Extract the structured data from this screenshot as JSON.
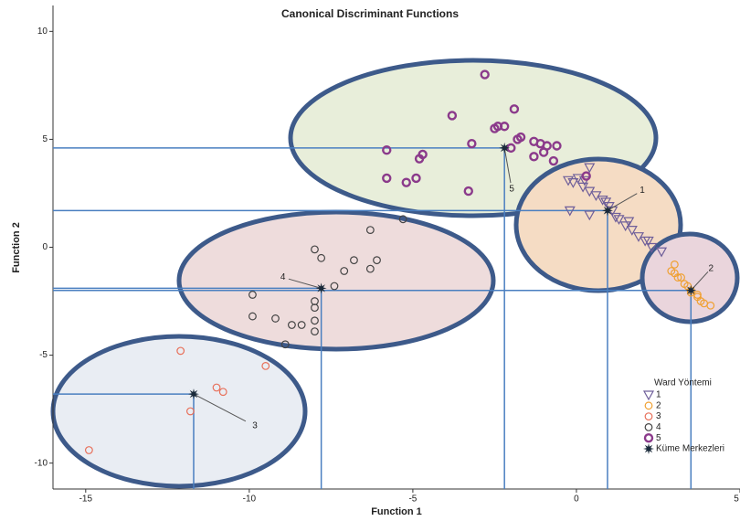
{
  "chart_data": {
    "type": "scatter",
    "title": "Canonical Discriminant Functions",
    "xlabel": "Function 1",
    "ylabel": "Function 2",
    "xlim": [
      -16,
      5
    ],
    "ylim": [
      -11.2,
      11.2
    ],
    "xticks": [
      -15,
      -10,
      -5,
      0,
      5
    ],
    "yticks": [
      -10,
      -5,
      0,
      5,
      10
    ],
    "legend": {
      "title": "Ward Yöntemi",
      "position": "right"
    },
    "series": [
      {
        "name": "1",
        "color": "#6f5f9a",
        "marker": "triangle",
        "x": [
          -0.25,
          -0.1,
          0.05,
          0.25,
          0.4,
          0.2,
          0.4,
          0.6,
          0.8,
          0.9,
          1.0,
          1.1,
          1.2,
          1.3,
          1.6,
          1.5,
          1.7,
          1.9,
          2.1,
          2.2,
          2.3,
          2.6,
          -0.2,
          0.4
        ],
        "values": [
          3.1,
          3.0,
          3.2,
          3.1,
          3.7,
          2.8,
          2.6,
          2.4,
          2.2,
          2.1,
          1.9,
          1.7,
          1.4,
          1.3,
          1.2,
          1.0,
          0.8,
          0.5,
          0.3,
          0.3,
          0.0,
          -0.2,
          1.7,
          1.5
        ]
      },
      {
        "name": "2",
        "color": "#f0a030",
        "marker": "circle",
        "x": [
          2.9,
          3.0,
          3.1,
          3.2,
          3.3,
          3.4,
          3.5,
          3.5,
          3.7,
          3.7,
          3.8,
          3.9,
          4.1,
          3.0
        ],
        "values": [
          -1.1,
          -1.2,
          -1.4,
          -1.4,
          -1.7,
          -1.8,
          -2.0,
          -2.1,
          -2.2,
          -2.3,
          -2.5,
          -2.6,
          -2.7,
          -0.8
        ]
      },
      {
        "name": "3",
        "color": "#e8705a",
        "marker": "circle",
        "x": [
          -12.1,
          -9.5,
          -11.0,
          -10.8,
          -11.8,
          -14.9
        ],
        "values": [
          -4.8,
          -5.5,
          -6.5,
          -6.7,
          -7.6,
          -9.4
        ]
      },
      {
        "name": "4",
        "color": "#444444",
        "marker": "circle",
        "x": [
          -6.3,
          -5.3,
          -8.0,
          -7.8,
          -6.8,
          -7.1,
          -6.1,
          -6.3,
          -7.4,
          -9.9,
          -8.0,
          -8.0,
          -9.9,
          -9.2,
          -8.7,
          -8.4,
          -8.0,
          -8.0,
          -8.9
        ],
        "values": [
          0.8,
          1.3,
          -0.1,
          -0.5,
          -0.6,
          -1.1,
          -0.6,
          -1.0,
          -1.8,
          -2.2,
          -2.5,
          -2.8,
          -3.2,
          -3.3,
          -3.6,
          -3.6,
          -3.4,
          -3.9,
          -4.5
        ]
      },
      {
        "name": "5",
        "color": "#8b3a8b",
        "marker": "thick-circle",
        "x": [
          -2.8,
          -3.8,
          -1.9,
          -2.2,
          -2.4,
          -2.5,
          -3.2,
          -5.8,
          -4.7,
          -4.8,
          -1.8,
          -1.7,
          -1.3,
          -1.1,
          -0.9,
          -0.6,
          -1.0,
          -0.7,
          -1.3,
          -5.8,
          -5.2,
          -4.9,
          -3.3,
          -2.0,
          0.3
        ],
        "values": [
          8.0,
          6.1,
          6.4,
          5.6,
          5.6,
          5.5,
          4.8,
          4.5,
          4.3,
          4.1,
          5.0,
          5.1,
          4.9,
          4.8,
          4.7,
          4.7,
          4.4,
          4.0,
          4.2,
          3.2,
          3.0,
          3.2,
          2.6,
          4.6,
          3.3
        ]
      },
      {
        "name": "Küme Merkezleri",
        "color": "#1a2a3a",
        "marker": "star",
        "labels": [
          "1",
          "2",
          "3",
          "4",
          "5"
        ],
        "x": [
          0.95,
          3.5,
          -11.7,
          -7.8,
          -2.2
        ],
        "values": [
          1.7,
          -2.0,
          -6.8,
          -1.9,
          4.6
        ]
      }
    ]
  }
}
